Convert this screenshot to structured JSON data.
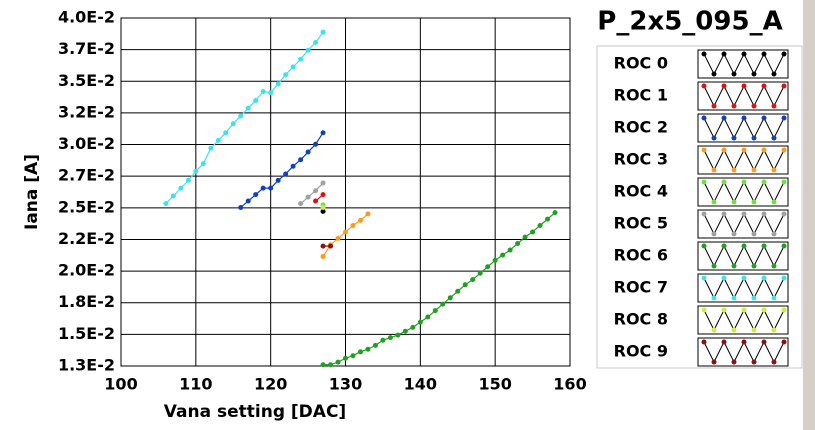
{
  "chart_data": {
    "type": "scatter",
    "title": "P_2x5_095_A",
    "x_label": "Vana setting [DAC]",
    "y_label": "Iana [A]",
    "xlim": [
      100,
      160
    ],
    "xticks": [
      100,
      110,
      120,
      130,
      140,
      150,
      160
    ],
    "ylim": [
      0.013,
      0.04
    ],
    "yticks": [
      {
        "value": 0.013,
        "label": "1.3E-2"
      },
      {
        "value": 0.015455,
        "label": "1.5E-2"
      },
      {
        "value": 0.017909,
        "label": "1.8E-2"
      },
      {
        "value": 0.020364,
        "label": "2.0E-2"
      },
      {
        "value": 0.022818,
        "label": "2.2E-2"
      },
      {
        "value": 0.025273,
        "label": "2.5E-2"
      },
      {
        "value": 0.027727,
        "label": "2.7E-2"
      },
      {
        "value": 0.030182,
        "label": "3.0E-2"
      },
      {
        "value": 0.032636,
        "label": "3.2E-2"
      },
      {
        "value": 0.035091,
        "label": "3.5E-2"
      },
      {
        "value": 0.037545,
        "label": "3.7E-2"
      },
      {
        "value": 0.04,
        "label": "4.0E-2"
      }
    ],
    "grid": true,
    "series": [
      {
        "name": "ROC 0",
        "color": "#000000",
        "x": [
          127
        ],
        "values": [
          0.025
        ]
      },
      {
        "name": "ROC 1",
        "color": "#e01010",
        "x": [
          126,
          127
        ],
        "values": [
          0.0258,
          0.0263
        ]
      },
      {
        "name": "ROC 2",
        "color": "#1040c0",
        "x": [
          116,
          117,
          118,
          119,
          120,
          121,
          122,
          123,
          124,
          125,
          126,
          127
        ],
        "values": [
          0.0253,
          0.0258,
          0.0263,
          0.0268,
          0.0268,
          0.0274,
          0.0279,
          0.0285,
          0.029,
          0.0296,
          0.0302,
          0.0311
        ]
      },
      {
        "name": "ROC 3",
        "color": "#ff9a20",
        "x": [
          127,
          128,
          129,
          130,
          131,
          132,
          133
        ],
        "values": [
          0.0215,
          0.0224,
          0.0229,
          0.0234,
          0.0239,
          0.0243,
          0.0248
        ]
      },
      {
        "name": "ROC 4",
        "color": "#70e040",
        "x": [
          127
        ],
        "values": [
          0.0255
        ]
      },
      {
        "name": "ROC 5",
        "color": "#a0a0a0",
        "x": [
          124,
          125,
          126,
          127
        ],
        "values": [
          0.0256,
          0.0261,
          0.0266,
          0.0272
        ]
      },
      {
        "name": "ROC 6",
        "color": "#20a020",
        "x": [
          127,
          128,
          129,
          130,
          131,
          132,
          133,
          134,
          135,
          136,
          137,
          138,
          139,
          140,
          141,
          142,
          143,
          144,
          145,
          146,
          147,
          148,
          149,
          150,
          151,
          152,
          153,
          154,
          155,
          156,
          157,
          158
        ],
        "values": [
          0.0131,
          0.0131,
          0.0133,
          0.0136,
          0.0138,
          0.0141,
          0.0143,
          0.0146,
          0.015,
          0.0152,
          0.0154,
          0.0157,
          0.016,
          0.0164,
          0.0168,
          0.0173,
          0.0178,
          0.0183,
          0.0188,
          0.0193,
          0.0197,
          0.0202,
          0.0207,
          0.0212,
          0.0216,
          0.022,
          0.0225,
          0.023,
          0.0234,
          0.0239,
          0.0244,
          0.0249
        ]
      },
      {
        "name": "ROC 7",
        "color": "#40e0f0",
        "x": [
          106,
          107,
          108,
          109,
          110,
          111,
          112,
          113,
          114,
          115,
          116,
          117,
          118,
          119,
          120,
          121,
          122,
          123,
          124,
          125,
          126,
          127
        ],
        "values": [
          0.0256,
          0.0262,
          0.0268,
          0.0274,
          0.0281,
          0.0287,
          0.0299,
          0.0305,
          0.0311,
          0.0318,
          0.0324,
          0.033,
          0.0336,
          0.0343,
          0.0342,
          0.0349,
          0.0356,
          0.0362,
          0.0368,
          0.0375,
          0.0381,
          0.0389
        ]
      },
      {
        "name": "ROC 8",
        "color": "#c8f040",
        "x": [
          127
        ],
        "values": [
          0.0253
        ]
      },
      {
        "name": "ROC 9",
        "color": "#8a1010",
        "x": [
          127,
          128
        ],
        "values": [
          0.0223,
          0.0223
        ]
      }
    ]
  }
}
